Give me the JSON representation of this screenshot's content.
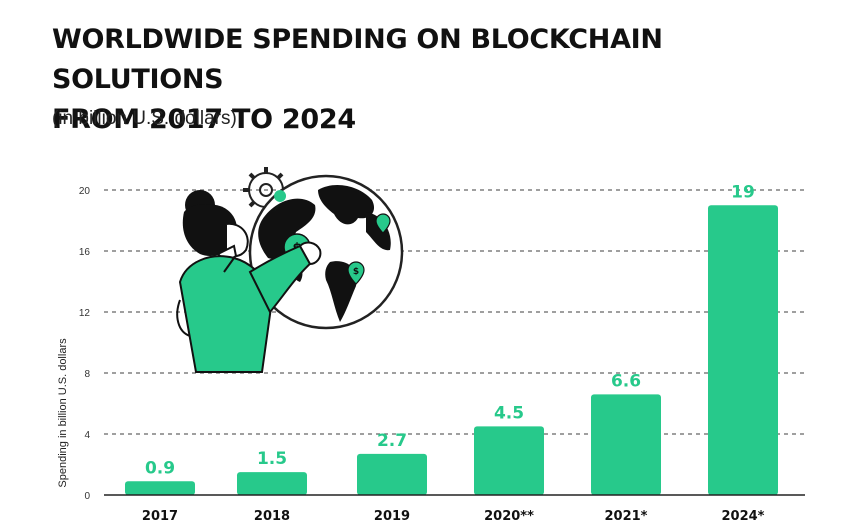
{
  "title_line1": "WORLDWIDE SPENDING ON BLOCKCHAIN SOLUTIONS",
  "title_line2": "FROM 2017 TO 2024",
  "subtitle": "(in billion U.S. dollars)",
  "colors": {
    "bar": "#27c98b",
    "label": "#27c98b",
    "text": "#111111",
    "grid": "#666666"
  },
  "chart_data": {
    "type": "bar",
    "categories": [
      "2017",
      "2018",
      "2019",
      "2020**",
      "2021*",
      "2024*"
    ],
    "values": [
      0.9,
      1.5,
      2.7,
      4.5,
      6.6,
      19
    ],
    "value_labels": [
      "0.9",
      "1.5",
      "2.7",
      "4.5",
      "6.6",
      "19"
    ],
    "ylabel": "Spending in billion U.S. dollars",
    "xlabel": "",
    "ylim": [
      0,
      20
    ],
    "yticks": [
      0,
      4,
      8,
      12,
      16,
      20
    ],
    "grid": true,
    "illustration": "person-holding-globe"
  }
}
